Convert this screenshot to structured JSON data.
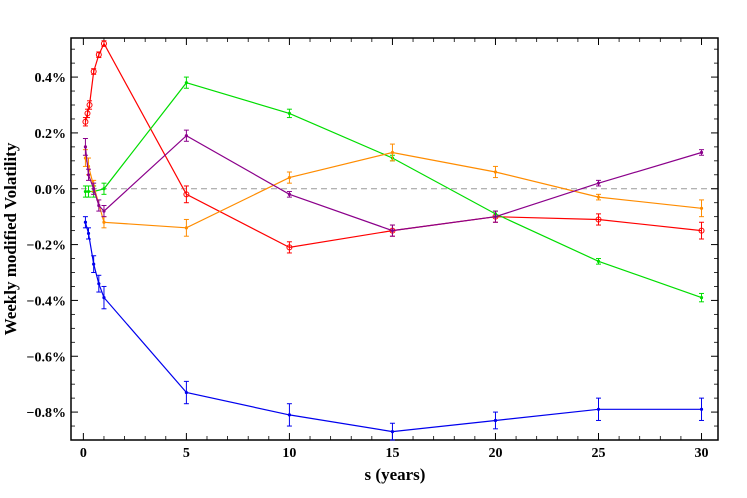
{
  "chart_data": {
    "type": "line",
    "xlabel": "s (years)",
    "ylabel": "Weekly modified Volatility",
    "xlim": [
      -0.6,
      30.8
    ],
    "ylim": [
      -0.009,
      0.0054
    ],
    "xticks": [
      0,
      5,
      10,
      15,
      20,
      25,
      30
    ],
    "xtick_labels": [
      "0",
      "5",
      "10",
      "15",
      "20",
      "25",
      "30"
    ],
    "yticks": [
      0.004,
      0.002,
      0.0,
      -0.002,
      -0.004,
      -0.006,
      -0.008
    ],
    "ytick_labels": [
      "0.4%",
      "0.2%",
      "0.0%",
      "−0.2%",
      "−0.4%",
      "−0.6%",
      "−0.8%"
    ],
    "reference_line": {
      "y": 0.0,
      "style": "dashed",
      "color": "#999999"
    },
    "grid": false,
    "series": [
      {
        "color": "#ff0000",
        "marker": "circle",
        "x": [
          0.1,
          0.2,
          0.3,
          0.5,
          0.75,
          1,
          5,
          10,
          15,
          20,
          25,
          30
        ],
        "y": [
          0.0024,
          0.0027,
          0.003,
          0.0042,
          0.0048,
          0.0052,
          -0.0002,
          -0.0021,
          -0.0015,
          -0.001,
          -0.0011,
          -0.0015
        ],
        "err": [
          0.00015,
          0.00015,
          0.00015,
          0.0001,
          0.0001,
          0.0001,
          0.0003,
          0.0002,
          0.0002,
          0.0002,
          0.0002,
          0.0003
        ]
      },
      {
        "color": "#00dd00",
        "marker": "tick",
        "x": [
          0.1,
          0.25,
          0.5,
          1,
          5,
          10,
          15,
          20,
          25,
          30
        ],
        "y": [
          -0.0001,
          -0.0001,
          -0.0001,
          0.0,
          0.0038,
          0.0027,
          0.0011,
          -0.0009,
          -0.0026,
          -0.0039
        ],
        "err": [
          0.0002,
          0.0002,
          0.0002,
          0.0002,
          0.0002,
          0.00015,
          0.0001,
          0.0001,
          0.0001,
          0.00015
        ]
      },
      {
        "color": "#ff8c00",
        "marker": "tick",
        "x": [
          0.1,
          0.25,
          0.5,
          1,
          5,
          10,
          15,
          20,
          25,
          30
        ],
        "y": [
          0.0011,
          0.0008,
          0.0001,
          -0.0012,
          -0.0014,
          0.0004,
          0.0013,
          0.0006,
          -0.0003,
          -0.0007
        ],
        "err": [
          0.0003,
          0.0003,
          0.0002,
          0.0002,
          0.0003,
          0.0002,
          0.0003,
          0.0002,
          0.0001,
          0.0003
        ]
      },
      {
        "color": "#8b008b",
        "marker": "tick",
        "x": [
          0.1,
          0.25,
          0.5,
          0.75,
          1,
          5,
          10,
          15,
          20,
          25,
          30
        ],
        "y": [
          0.0015,
          0.0005,
          0.0,
          -0.0006,
          -0.0008,
          0.0019,
          -0.0002,
          -0.0015,
          -0.001,
          0.0002,
          0.0013
        ],
        "err": [
          0.0003,
          0.0002,
          0.0002,
          0.0002,
          0.0002,
          0.0002,
          0.0001,
          0.0002,
          0.0002,
          0.0001,
          0.0001
        ]
      },
      {
        "color": "#0000ee",
        "marker": "tick",
        "x": [
          0.1,
          0.25,
          0.5,
          0.75,
          1,
          5,
          10,
          15,
          20,
          25,
          30
        ],
        "y": [
          -0.0012,
          -0.0016,
          -0.0027,
          -0.0034,
          -0.0039,
          -0.0073,
          -0.0081,
          -0.0087,
          -0.0083,
          -0.0079,
          -0.0079
        ],
        "err": [
          0.0002,
          0.0002,
          0.0003,
          0.0003,
          0.0004,
          0.0004,
          0.0004,
          0.0003,
          0.0003,
          0.0004,
          0.0004
        ]
      }
    ]
  }
}
